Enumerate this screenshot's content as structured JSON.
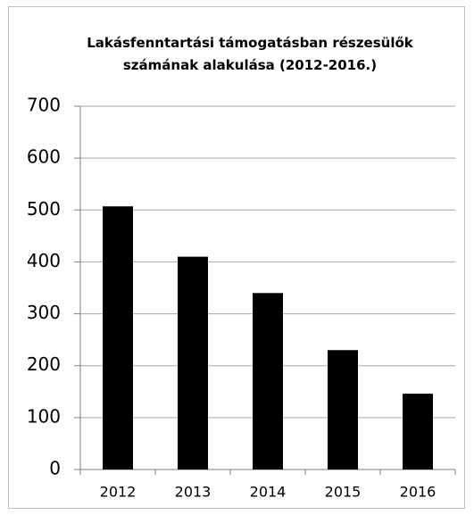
{
  "chart_data": {
    "type": "bar",
    "title": "Lakásfenntartási támogatásban részesülők számának alakulása (2012-2016.)",
    "categories": [
      "2012",
      "2013",
      "2014",
      "2015",
      "2016"
    ],
    "values": [
      507,
      410,
      340,
      230,
      146
    ],
    "color": "#000000",
    "ylim": [
      0,
      700
    ],
    "yticks": [
      0,
      100,
      200,
      300,
      400,
      500,
      600,
      700
    ],
    "grid": true
  }
}
